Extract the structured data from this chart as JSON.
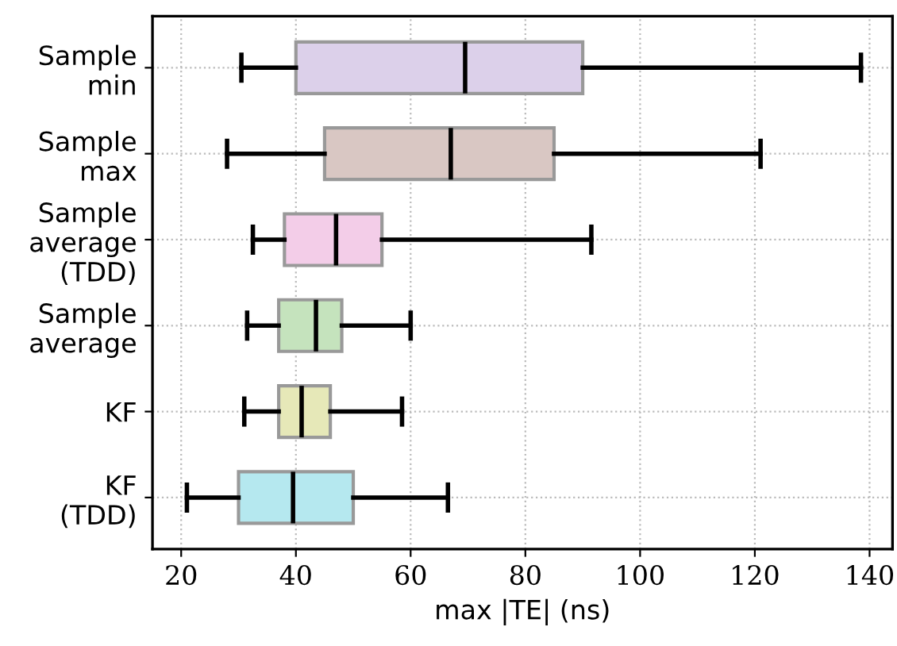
{
  "chart_data": {
    "type": "box",
    "orientation": "horizontal",
    "categories": [
      "Sample\nmin",
      "Sample\nmax",
      "Sample\naverage\n(TDD)",
      "Sample\naverage",
      "KF",
      "KF\n(TDD)"
    ],
    "boxes": [
      {
        "low": 30.5,
        "q1": 40,
        "median": 69.5,
        "q3": 90,
        "high": 138.5
      },
      {
        "low": 28,
        "q1": 45,
        "median": 67,
        "q3": 85,
        "high": 121
      },
      {
        "low": 32.5,
        "q1": 38,
        "median": 47,
        "q3": 55,
        "high": 91.5
      },
      {
        "low": 31.5,
        "q1": 37,
        "median": 43.5,
        "q3": 48,
        "high": 60
      },
      {
        "low": 31,
        "q1": 37,
        "median": 41,
        "q3": 46,
        "high": 58.5
      },
      {
        "low": 21,
        "q1": 30,
        "median": 39.5,
        "q3": 50,
        "high": 66.5
      }
    ],
    "colors": [
      "#dcd0ea",
      "#d9c7c3",
      "#f3cde8",
      "#c5e3bd",
      "#e6e8b8",
      "#b5e8ef"
    ],
    "xlabel": "max |TE| (ns)",
    "xlim": [
      15,
      144
    ],
    "xticks": [
      20,
      40,
      60,
      80,
      100,
      120,
      140
    ],
    "grid": true
  }
}
